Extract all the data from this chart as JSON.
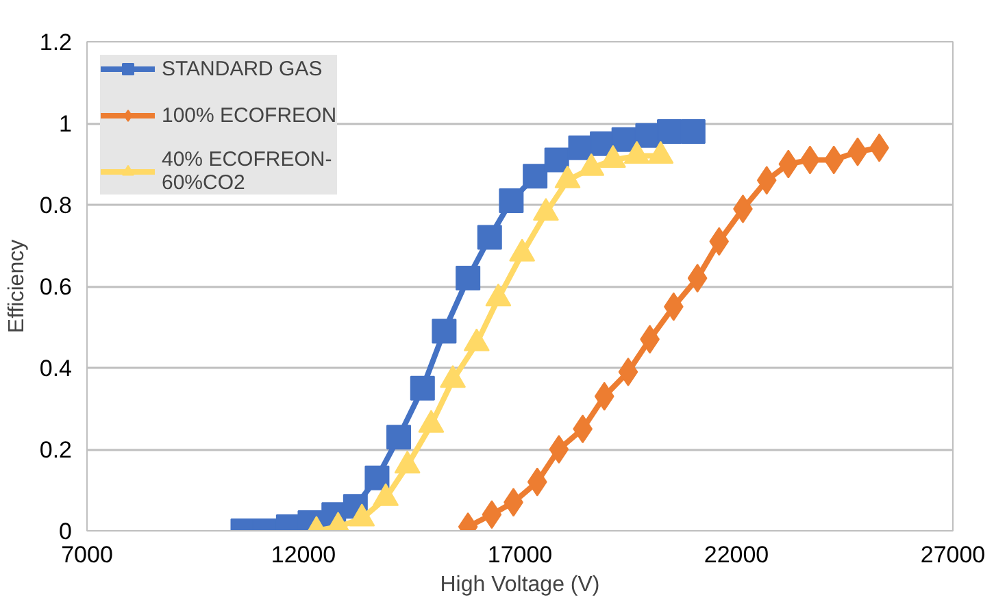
{
  "chart_data": {
    "type": "line",
    "xlabel": "High Voltage (V)",
    "ylabel": "Efficiency",
    "xlim": [
      7000,
      27000
    ],
    "xticks": [
      7000,
      12000,
      17000,
      22000,
      27000
    ],
    "ylim": [
      0,
      1.2
    ],
    "yticks": [
      {
        "value": 0,
        "label": "0"
      },
      0.2,
      0.4,
      0.6,
      0.8,
      {
        "value": 1,
        "label": "1"
      },
      1.2
    ],
    "grid": "y",
    "legend": "top left",
    "line_style": "solid",
    "series": [
      {
        "name": "STANDARD GAS",
        "color": "#4472c4",
        "marker": "square",
        "x": [
          10600,
          11100,
          11650,
          12150,
          12700,
          13200,
          13700,
          14200,
          14750,
          15250,
          15800,
          16300,
          16800,
          17350,
          17850,
          18400,
          18900,
          19400,
          19950,
          20450,
          21000
        ],
        "values": [
          0,
          0,
          0.01,
          0.02,
          0.04,
          0.06,
          0.13,
          0.23,
          0.35,
          0.49,
          0.62,
          0.72,
          0.81,
          0.87,
          0.91,
          0.94,
          0.95,
          0.96,
          0.97,
          0.98,
          0.98
        ]
      },
      {
        "name": "100% ECOFREON",
        "color": "#ed7d31",
        "marker": "diamond",
        "x": [
          15800,
          16350,
          16850,
          17400,
          17900,
          18450,
          18950,
          19500,
          20000,
          20550,
          21100,
          21600,
          22150,
          22700,
          23200,
          23700,
          24250,
          24800,
          25300
        ],
        "values": [
          0.01,
          0.04,
          0.07,
          0.12,
          0.2,
          0.25,
          0.33,
          0.39,
          0.47,
          0.55,
          0.62,
          0.71,
          0.79,
          0.86,
          0.9,
          0.91,
          0.91,
          0.93,
          0.94
        ]
      },
      {
        "name": "40% ECOFREON-60%CO2",
        "color": "#ffd966",
        "marker": "triangle",
        "x": [
          12300,
          12800,
          13350,
          13900,
          14400,
          14950,
          15450,
          16000,
          16500,
          17050,
          17600,
          18100,
          18650,
          19150,
          19700,
          20250
        ],
        "values": [
          0,
          0.01,
          0.03,
          0.08,
          0.16,
          0.26,
          0.37,
          0.46,
          0.57,
          0.68,
          0.78,
          0.86,
          0.89,
          0.91,
          0.92,
          0.92
        ]
      }
    ]
  }
}
